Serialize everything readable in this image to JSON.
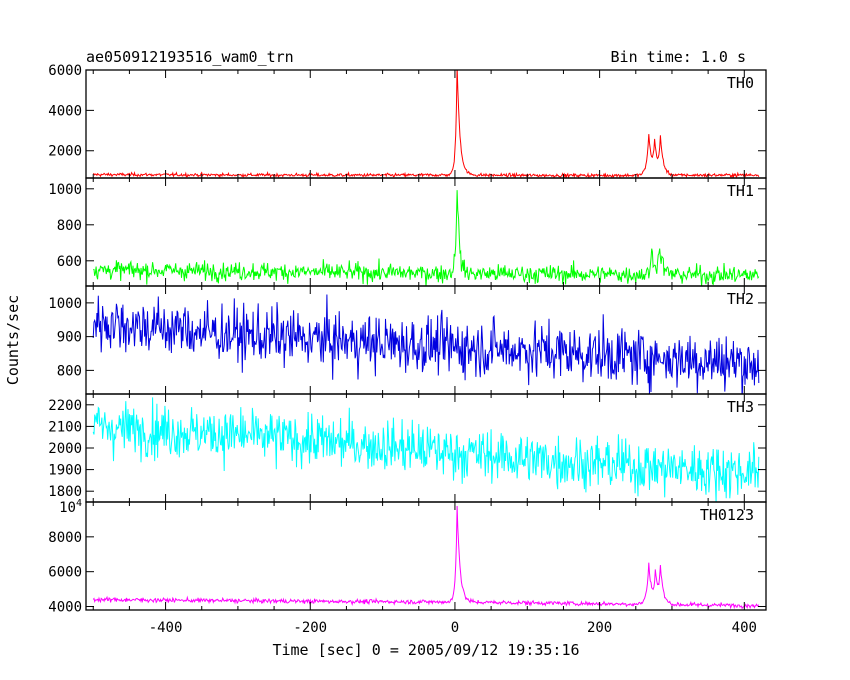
{
  "chart_data": {
    "type": "line",
    "title": "ae050912193516_wam0_trn",
    "bin_time_label": "Bin time: 1.0 s",
    "xlabel": "Time [sec] 0 = 2005/09/12 19:35:16",
    "ylabel": "Counts/sec",
    "xlim": [
      -510,
      430
    ],
    "x_ticks": [
      -400,
      -200,
      0,
      200,
      400
    ],
    "panels": [
      {
        "name": "TH0",
        "color": "#ff0000",
        "ylim": [
          650,
          6000
        ],
        "y_ticks": [
          {
            "v": 2000,
            "label": "2000"
          },
          {
            "v": 4000,
            "label": "4000"
          },
          {
            "v": 6000,
            "label": "6000"
          }
        ],
        "baseline": [
          [
            -500,
            820
          ],
          [
            -300,
            800
          ],
          [
            -100,
            790
          ],
          [
            0,
            800
          ],
          [
            100,
            780
          ],
          [
            250,
            780
          ],
          [
            420,
            800
          ]
        ],
        "noise": 40,
        "peaks": [
          {
            "t": 3,
            "a": 5400,
            "rise": 2,
            "decay": 4
          },
          {
            "t": 268,
            "a": 2000,
            "rise": 3,
            "decay": 4
          },
          {
            "t": 276,
            "a": 1500,
            "rise": 2,
            "decay": 4
          },
          {
            "t": 284,
            "a": 1700,
            "rise": 2,
            "decay": 4
          }
        ]
      },
      {
        "name": "TH1",
        "color": "#00ff00",
        "ylim": [
          460,
          1060
        ],
        "y_ticks": [
          {
            "v": 600,
            "label": "600"
          },
          {
            "v": 800,
            "label": "800"
          },
          {
            "v": 1000,
            "label": "1000"
          }
        ],
        "baseline": [
          [
            -500,
            550
          ],
          [
            0,
            530
          ],
          [
            420,
            520
          ]
        ],
        "noise": 25,
        "peaks": [
          {
            "t": 3,
            "a": 500,
            "rise": 2,
            "decay": 3
          },
          {
            "t": 272,
            "a": 120,
            "rise": 2,
            "decay": 6
          },
          {
            "t": 283,
            "a": 140,
            "rise": 2,
            "decay": 4
          }
        ]
      },
      {
        "name": "TH2",
        "color": "#0000e0",
        "ylim": [
          730,
          1050
        ],
        "y_ticks": [
          {
            "v": 800,
            "label": "800"
          },
          {
            "v": 900,
            "label": "900"
          },
          {
            "v": 1000,
            "label": "1000"
          }
        ],
        "baseline": [
          [
            -500,
            945
          ],
          [
            -300,
            905
          ],
          [
            -100,
            880
          ],
          [
            100,
            860
          ],
          [
            300,
            835
          ],
          [
            420,
            820
          ]
        ],
        "noise": 42,
        "peaks": []
      },
      {
        "name": "TH3",
        "color": "#00ffff",
        "ylim": [
          1750,
          2250
        ],
        "y_ticks": [
          {
            "v": 1800,
            "label": "1800"
          },
          {
            "v": 1900,
            "label": "1900"
          },
          {
            "v": 2000,
            "label": "2000"
          },
          {
            "v": 2100,
            "label": "2100"
          },
          {
            "v": 2200,
            "label": "2200"
          }
        ],
        "baseline": [
          [
            -500,
            2100
          ],
          [
            -300,
            2060
          ],
          [
            -100,
            2010
          ],
          [
            100,
            1950
          ],
          [
            300,
            1905
          ],
          [
            420,
            1890
          ]
        ],
        "noise": 60,
        "peaks": []
      },
      {
        "name": "TH0123",
        "color": "#ff00ff",
        "ylim": [
          3800,
          10000
        ],
        "y_ticks": [
          {
            "v": 4000,
            "label": "4000"
          },
          {
            "v": 6000,
            "label": "6000"
          },
          {
            "v": 8000,
            "label": "8000"
          }
        ],
        "top_label_base": "10",
        "top_label_exp": "4",
        "baseline": [
          [
            -500,
            4400
          ],
          [
            -200,
            4300
          ],
          [
            0,
            4260
          ],
          [
            200,
            4160
          ],
          [
            420,
            4050
          ]
        ],
        "noise": 60,
        "peaks": [
          {
            "t": 3,
            "a": 5600,
            "rise": 2,
            "decay": 4
          },
          {
            "t": 268,
            "a": 2300,
            "rise": 3,
            "decay": 4
          },
          {
            "t": 277,
            "a": 1700,
            "rise": 2,
            "decay": 4
          },
          {
            "t": 284,
            "a": 1900,
            "rise": 2,
            "decay": 4
          }
        ]
      }
    ]
  }
}
